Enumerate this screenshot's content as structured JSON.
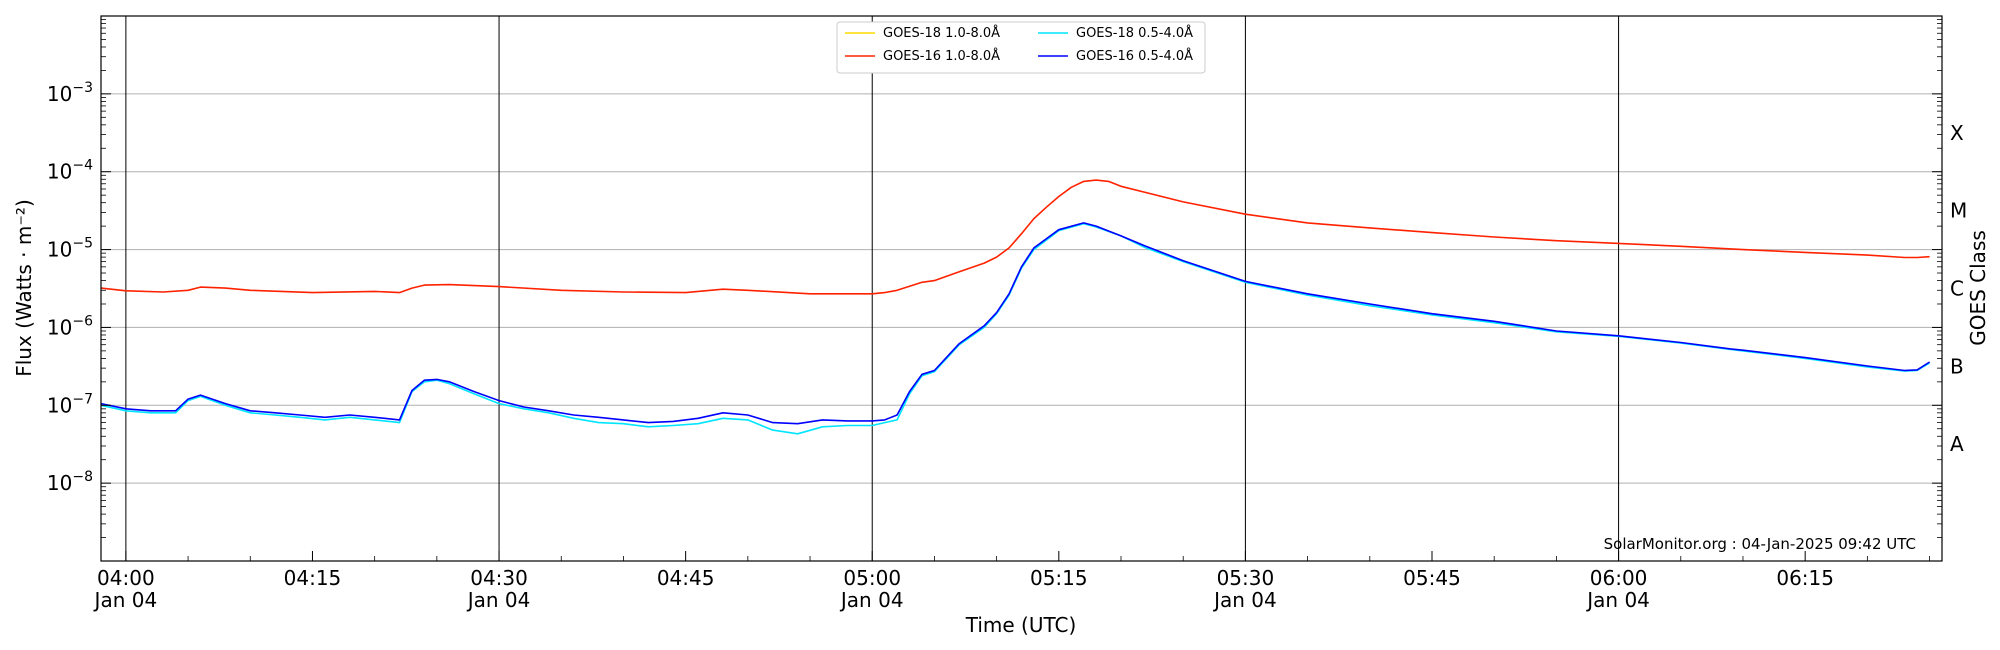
{
  "chart_data": {
    "type": "line",
    "xlabel": "Time (UTC)",
    "ylabel": "Flux (Watts · m⁻²)",
    "right_label": "GOES Class",
    "credit": "SolarMonitor.org : 04-Jan-2025 09:42 UTC",
    "y_scale": "log",
    "ylim": [
      1e-09,
      0.01
    ],
    "xlim": [
      "03:58",
      "06:26"
    ],
    "grid": "horizontal major",
    "legend_placement": "top-center",
    "x_ticks": [
      {
        "time": "04:00",
        "label": "04:00",
        "sublabel": "Jan 04",
        "major": true
      },
      {
        "time": "04:15",
        "label": "04:15",
        "sublabel": "",
        "major": false
      },
      {
        "time": "04:30",
        "label": "04:30",
        "sublabel": "Jan 04",
        "major": true
      },
      {
        "time": "04:45",
        "label": "04:45",
        "sublabel": "",
        "major": false
      },
      {
        "time": "05:00",
        "label": "05:00",
        "sublabel": "Jan 04",
        "major": true
      },
      {
        "time": "05:15",
        "label": "05:15",
        "sublabel": "",
        "major": false
      },
      {
        "time": "05:30",
        "label": "05:30",
        "sublabel": "Jan 04",
        "major": true
      },
      {
        "time": "05:45",
        "label": "05:45",
        "sublabel": "",
        "major": false
      },
      {
        "time": "06:00",
        "label": "06:00",
        "sublabel": "Jan 04",
        "major": true
      },
      {
        "time": "06:15",
        "label": "06:15",
        "sublabel": "",
        "major": false
      }
    ],
    "y_ticks": [
      {
        "value": 1e-08,
        "base": "10",
        "exp": "−8"
      },
      {
        "value": 1e-07,
        "base": "10",
        "exp": "−7"
      },
      {
        "value": 1e-06,
        "base": "10",
        "exp": "−6"
      },
      {
        "value": 1e-05,
        "base": "10",
        "exp": "−5"
      },
      {
        "value": 0.0001,
        "base": "10",
        "exp": "−4"
      },
      {
        "value": 0.001,
        "base": "10",
        "exp": "−3"
      }
    ],
    "goes_classes": [
      {
        "label": "A",
        "value": 3.16e-08
      },
      {
        "label": "B",
        "value": 3.16e-07
      },
      {
        "label": "C",
        "value": 3.16e-06
      },
      {
        "label": "M",
        "value": 3.16e-05
      },
      {
        "label": "X",
        "value": 0.000316
      }
    ],
    "series": [
      {
        "name": "GOES-18 1.0-8.0Å",
        "color": "#ffd700",
        "points": []
      },
      {
        "name": "GOES-18 0.5-4.0Å",
        "color": "#00e5ff",
        "points": [
          [
            "03:58",
            1e-07
          ],
          [
            "04:00",
            8.5e-08
          ],
          [
            "04:02",
            8e-08
          ],
          [
            "04:04",
            8e-08
          ],
          [
            "04:05",
            1.15e-07
          ],
          [
            "04:06",
            1.3e-07
          ],
          [
            "04:08",
            1e-07
          ],
          [
            "04:10",
            8e-08
          ],
          [
            "04:12",
            7.5e-08
          ],
          [
            "04:14",
            7e-08
          ],
          [
            "04:16",
            6.5e-08
          ],
          [
            "04:18",
            7e-08
          ],
          [
            "04:20",
            6.5e-08
          ],
          [
            "04:22",
            6e-08
          ],
          [
            "04:23",
            1.5e-07
          ],
          [
            "04:24",
            2e-07
          ],
          [
            "04:25",
            2.1e-07
          ],
          [
            "04:26",
            1.9e-07
          ],
          [
            "04:28",
            1.4e-07
          ],
          [
            "04:30",
            1.05e-07
          ],
          [
            "04:32",
            9e-08
          ],
          [
            "04:34",
            8e-08
          ],
          [
            "04:36",
            6.8e-08
          ],
          [
            "04:38",
            6e-08
          ],
          [
            "04:40",
            5.8e-08
          ],
          [
            "04:42",
            5.3e-08
          ],
          [
            "04:44",
            5.5e-08
          ],
          [
            "04:46",
            5.8e-08
          ],
          [
            "04:48",
            6.8e-08
          ],
          [
            "04:50",
            6.5e-08
          ],
          [
            "04:52",
            4.8e-08
          ],
          [
            "04:54",
            4.3e-08
          ],
          [
            "04:56",
            5.3e-08
          ],
          [
            "04:58",
            5.5e-08
          ],
          [
            "05:00",
            5.5e-08
          ],
          [
            "05:01",
            6e-08
          ],
          [
            "05:02",
            6.5e-08
          ],
          [
            "05:03",
            1.4e-07
          ],
          [
            "05:04",
            2.4e-07
          ],
          [
            "05:05",
            2.7e-07
          ],
          [
            "05:07",
            6e-07
          ],
          [
            "05:09",
            1e-06
          ],
          [
            "05:10",
            1.5e-06
          ],
          [
            "05:11",
            2.6e-06
          ],
          [
            "05:12",
            5.8e-06
          ],
          [
            "05:13",
            1e-05
          ],
          [
            "05:15",
            1.75e-05
          ],
          [
            "05:17",
            2.15e-05
          ],
          [
            "05:18",
            1.95e-05
          ],
          [
            "05:20",
            1.5e-05
          ],
          [
            "05:22",
            1.05e-05
          ],
          [
            "05:25",
            7e-06
          ],
          [
            "05:30",
            3.8e-06
          ],
          [
            "05:35",
            2.6e-06
          ],
          [
            "05:40",
            1.9e-06
          ],
          [
            "05:45",
            1.45e-06
          ],
          [
            "05:50",
            1.15e-06
          ],
          [
            "05:55",
            8.8e-07
          ],
          [
            "06:00",
            7.7e-07
          ],
          [
            "06:05",
            6.3e-07
          ],
          [
            "06:09",
            5.2e-07
          ],
          [
            "06:10",
            5e-07
          ],
          [
            "06:15",
            4e-07
          ],
          [
            "06:20",
            3.1e-07
          ],
          [
            "06:23",
            2.75e-07
          ],
          [
            "06:24",
            2.8e-07
          ],
          [
            "06:25",
            3.5e-07
          ]
        ]
      },
      {
        "name": "GOES-16 1.0-8.0Å",
        "color": "#ff2200",
        "points": [
          [
            "03:58",
            3.2e-06
          ],
          [
            "04:00",
            2.95e-06
          ],
          [
            "04:03",
            2.85e-06
          ],
          [
            "04:05",
            3e-06
          ],
          [
            "04:06",
            3.3e-06
          ],
          [
            "04:08",
            3.2e-06
          ],
          [
            "04:10",
            3e-06
          ],
          [
            "04:15",
            2.8e-06
          ],
          [
            "04:20",
            2.9e-06
          ],
          [
            "04:22",
            2.8e-06
          ],
          [
            "04:23",
            3.2e-06
          ],
          [
            "04:24",
            3.5e-06
          ],
          [
            "04:26",
            3.55e-06
          ],
          [
            "04:30",
            3.35e-06
          ],
          [
            "04:35",
            3e-06
          ],
          [
            "04:40",
            2.85e-06
          ],
          [
            "04:45",
            2.8e-06
          ],
          [
            "04:48",
            3.1e-06
          ],
          [
            "04:50",
            3e-06
          ],
          [
            "04:55",
            2.7e-06
          ],
          [
            "05:00",
            2.7e-06
          ],
          [
            "05:01",
            2.8e-06
          ],
          [
            "05:02",
            3e-06
          ],
          [
            "05:04",
            3.8e-06
          ],
          [
            "05:05",
            4e-06
          ],
          [
            "05:07",
            5.2e-06
          ],
          [
            "05:09",
            6.7e-06
          ],
          [
            "05:10",
            8e-06
          ],
          [
            "05:11",
            1.05e-05
          ],
          [
            "05:12",
            1.6e-05
          ],
          [
            "05:13",
            2.5e-05
          ],
          [
            "05:14",
            3.5e-05
          ],
          [
            "05:15",
            4.8e-05
          ],
          [
            "05:16",
            6.3e-05
          ],
          [
            "05:17",
            7.5e-05
          ],
          [
            "05:18",
            7.8e-05
          ],
          [
            "05:19",
            7.5e-05
          ],
          [
            "05:20",
            6.5e-05
          ],
          [
            "05:25",
            4.1e-05
          ],
          [
            "05:30",
            2.85e-05
          ],
          [
            "05:35",
            2.2e-05
          ],
          [
            "05:40",
            1.9e-05
          ],
          [
            "05:45",
            1.65e-05
          ],
          [
            "05:50",
            1.45e-05
          ],
          [
            "05:55",
            1.3e-05
          ],
          [
            "06:00",
            1.2e-05
          ],
          [
            "06:05",
            1.1e-05
          ],
          [
            "06:10",
            1e-05
          ],
          [
            "06:15",
            9.2e-06
          ],
          [
            "06:20",
            8.5e-06
          ],
          [
            "06:23",
            7.9e-06
          ],
          [
            "06:24",
            7.9e-06
          ],
          [
            "06:25",
            8.1e-06
          ]
        ]
      },
      {
        "name": "GOES-16 0.5-4.0Å",
        "color": "#0000ff",
        "points": [
          [
            "03:58",
            1.05e-07
          ],
          [
            "04:00",
            9e-08
          ],
          [
            "04:02",
            8.5e-08
          ],
          [
            "04:04",
            8.5e-08
          ],
          [
            "04:05",
            1.2e-07
          ],
          [
            "04:06",
            1.35e-07
          ],
          [
            "04:08",
            1.05e-07
          ],
          [
            "04:10",
            8.5e-08
          ],
          [
            "04:12",
            8e-08
          ],
          [
            "04:14",
            7.5e-08
          ],
          [
            "04:16",
            7e-08
          ],
          [
            "04:18",
            7.5e-08
          ],
          [
            "04:20",
            7e-08
          ],
          [
            "04:22",
            6.5e-08
          ],
          [
            "04:23",
            1.55e-07
          ],
          [
            "04:24",
            2.1e-07
          ],
          [
            "04:25",
            2.15e-07
          ],
          [
            "04:26",
            2e-07
          ],
          [
            "04:28",
            1.5e-07
          ],
          [
            "04:30",
            1.15e-07
          ],
          [
            "04:32",
            9.5e-08
          ],
          [
            "04:34",
            8.5e-08
          ],
          [
            "04:36",
            7.5e-08
          ],
          [
            "04:38",
            7e-08
          ],
          [
            "04:40",
            6.5e-08
          ],
          [
            "04:42",
            6e-08
          ],
          [
            "04:44",
            6.2e-08
          ],
          [
            "04:46",
            6.8e-08
          ],
          [
            "04:48",
            8e-08
          ],
          [
            "04:50",
            7.5e-08
          ],
          [
            "04:52",
            6e-08
          ],
          [
            "04:54",
            5.8e-08
          ],
          [
            "04:56",
            6.5e-08
          ],
          [
            "04:58",
            6.3e-08
          ],
          [
            "05:00",
            6.3e-08
          ],
          [
            "05:01",
            6.5e-08
          ],
          [
            "05:02",
            7.5e-08
          ],
          [
            "05:03",
            1.5e-07
          ],
          [
            "05:04",
            2.5e-07
          ],
          [
            "05:05",
            2.8e-07
          ],
          [
            "05:07",
            6.2e-07
          ],
          [
            "05:09",
            1.05e-06
          ],
          [
            "05:10",
            1.55e-06
          ],
          [
            "05:11",
            2.7e-06
          ],
          [
            "05:12",
            6e-06
          ],
          [
            "05:13",
            1.05e-05
          ],
          [
            "05:15",
            1.8e-05
          ],
          [
            "05:17",
            2.2e-05
          ],
          [
            "05:18",
            2e-05
          ],
          [
            "05:20",
            1.5e-05
          ],
          [
            "05:22",
            1.1e-05
          ],
          [
            "05:25",
            7.2e-06
          ],
          [
            "05:30",
            3.9e-06
          ],
          [
            "05:35",
            2.7e-06
          ],
          [
            "05:40",
            2e-06
          ],
          [
            "05:45",
            1.5e-06
          ],
          [
            "05:50",
            1.2e-06
          ],
          [
            "05:55",
            9e-07
          ],
          [
            "06:00",
            7.8e-07
          ],
          [
            "06:05",
            6.4e-07
          ],
          [
            "06:09",
            5.3e-07
          ],
          [
            "06:10",
            5.1e-07
          ],
          [
            "06:15",
            4.1e-07
          ],
          [
            "06:20",
            3.2e-07
          ],
          [
            "06:23",
            2.8e-07
          ],
          [
            "06:24",
            2.85e-07
          ],
          [
            "06:25",
            3.6e-07
          ]
        ]
      }
    ],
    "legend": [
      {
        "label": "GOES-18 1.0-8.0Å",
        "color": "#ffd700",
        "col": 0,
        "row": 0
      },
      {
        "label": "GOES-16 1.0-8.0Å",
        "color": "#ff2200",
        "col": 0,
        "row": 1
      },
      {
        "label": "GOES-18 0.5-4.0Å",
        "color": "#00e5ff",
        "col": 1,
        "row": 0
      },
      {
        "label": "GOES-16 0.5-4.0Å",
        "color": "#0000ff",
        "col": 1,
        "row": 1
      }
    ]
  }
}
